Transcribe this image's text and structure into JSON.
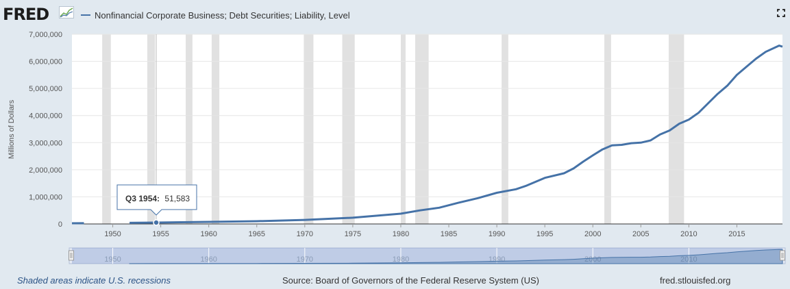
{
  "logo": {
    "text": "FRED"
  },
  "legend": {
    "label": "Nonfinancial Corporate Business; Debt Securities; Liability, Level"
  },
  "tooltip": {
    "period": "Q3 1954:",
    "value": "51,583"
  },
  "footer": {
    "recessions_link": "Shaded areas indicate U.S. recessions",
    "source": "Source: Board of Governors of the Federal Reserve System (US)",
    "site": "fred.stlouisfed.org"
  },
  "colors": {
    "series": "#4572a7",
    "recession": "#e1e1e1",
    "background": "#e1e9f0"
  },
  "chart_data": {
    "type": "line",
    "title": "",
    "xlabel": "",
    "ylabel": "Millions of Dollars",
    "xlim": [
      1945.75,
      2019.75
    ],
    "ylim": [
      0,
      7000000
    ],
    "x_ticks": [
      "1950",
      "1955",
      "1960",
      "1965",
      "1970",
      "1975",
      "1980",
      "1985",
      "1990",
      "1995",
      "2000",
      "2005",
      "2010",
      "2015"
    ],
    "y_ticks": [
      "0",
      "1,000,000",
      "2,000,000",
      "3,000,000",
      "4,000,000",
      "5,000,000",
      "6,000,000",
      "7,000,000"
    ],
    "grid": true,
    "legend_position": "top-left",
    "recessions": [
      [
        1948.9,
        1949.8
      ],
      [
        1953.6,
        1954.4
      ],
      [
        1957.6,
        1958.3
      ],
      [
        1960.3,
        1961.1
      ],
      [
        1969.9,
        1970.9
      ],
      [
        1973.9,
        1975.2
      ],
      [
        1980.0,
        1980.5
      ],
      [
        1981.5,
        1982.9
      ],
      [
        1990.5,
        1991.2
      ],
      [
        2001.2,
        2001.9
      ],
      [
        2007.9,
        2009.5
      ]
    ],
    "navigator_labels": [
      "1950",
      "1960",
      "1970",
      "1980",
      "1990",
      "2000",
      "2010"
    ],
    "series": [
      {
        "name": "Nonfinancial Corporate Business; Debt Securities; Liability, Level",
        "points": [
          [
            1945.75,
            25000
          ],
          [
            1947.0,
            27000
          ],
          [
            1951.75,
            40000
          ],
          [
            1954.5,
            51583
          ],
          [
            1960,
            75000
          ],
          [
            1965,
            100000
          ],
          [
            1970,
            150000
          ],
          [
            1975,
            230000
          ],
          [
            1980,
            380000
          ],
          [
            1982,
            500000
          ],
          [
            1984,
            600000
          ],
          [
            1986,
            780000
          ],
          [
            1988,
            950000
          ],
          [
            1990,
            1150000
          ],
          [
            1992,
            1280000
          ],
          [
            1993,
            1400000
          ],
          [
            1995,
            1700000
          ],
          [
            1997,
            1870000
          ],
          [
            1998,
            2050000
          ],
          [
            1999,
            2300000
          ],
          [
            2000,
            2530000
          ],
          [
            2001,
            2750000
          ],
          [
            2002,
            2900000
          ],
          [
            2003,
            2920000
          ],
          [
            2004,
            2980000
          ],
          [
            2005,
            3000000
          ],
          [
            2006,
            3080000
          ],
          [
            2007,
            3300000
          ],
          [
            2008,
            3450000
          ],
          [
            2009,
            3700000
          ],
          [
            2010,
            3850000
          ],
          [
            2011,
            4100000
          ],
          [
            2012,
            4450000
          ],
          [
            2013,
            4800000
          ],
          [
            2014,
            5100000
          ],
          [
            2015,
            5500000
          ],
          [
            2016,
            5800000
          ],
          [
            2017,
            6100000
          ],
          [
            2018,
            6350000
          ],
          [
            2019.4,
            6580000
          ],
          [
            2019.75,
            6540000
          ]
        ]
      }
    ]
  }
}
